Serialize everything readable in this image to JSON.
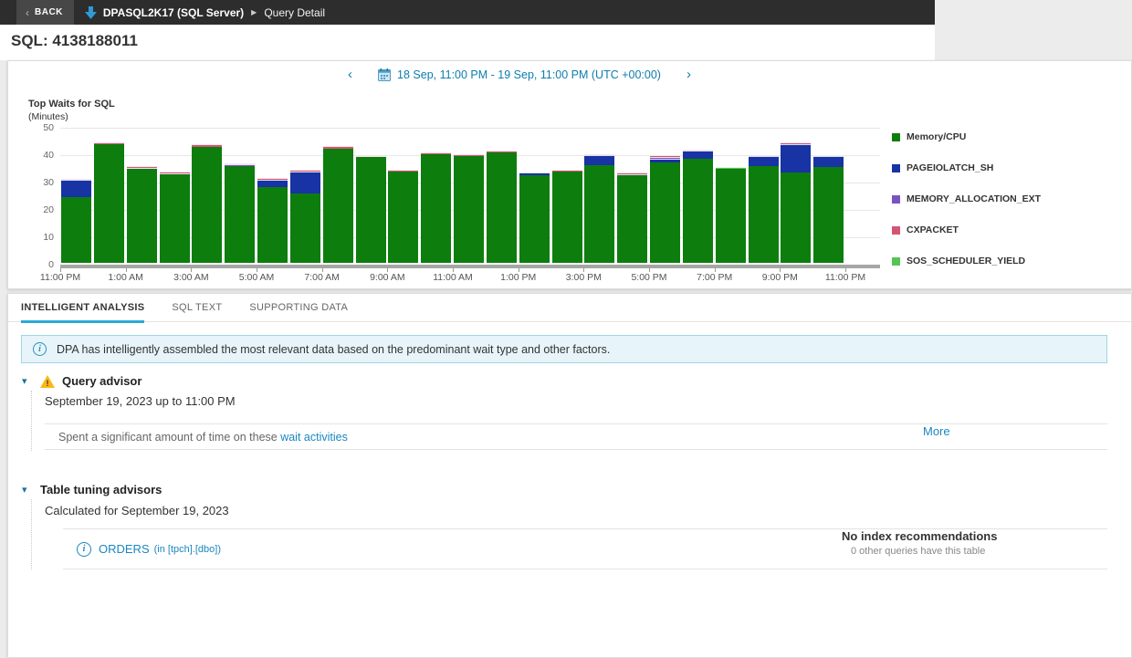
{
  "topbar": {
    "back_chevron": "‹",
    "back_label": "BACK",
    "server": "DPASQL2K17 (SQL Server)",
    "separator": "▶",
    "page": "Query Detail"
  },
  "header": {
    "title": "SQL: 4138188011"
  },
  "datenav": {
    "prev_icon": "‹",
    "next_icon": "›",
    "range": "18 Sep, 11:00 PM - 19 Sep, 11:00 PM (UTC +00:00)"
  },
  "chart_data": {
    "type": "bar",
    "stacked": true,
    "title": "Top Waits for SQL",
    "ylabel": "(Minutes)",
    "ylim": [
      0,
      50
    ],
    "yticks": [
      0,
      10,
      20,
      30,
      40,
      50
    ],
    "grid": true,
    "legend_position": "right",
    "xtick_labels": [
      "11:00 PM",
      "1:00 AM",
      "3:00 AM",
      "5:00 AM",
      "7:00 AM",
      "9:00 AM",
      "11:00 AM",
      "1:00 PM",
      "3:00 PM",
      "5:00 PM",
      "7:00 PM",
      "9:00 PM",
      "11:00 PM"
    ],
    "series": [
      {
        "name": "Memory/CPU",
        "color": "#0d7d0d",
        "values": [
          24,
          43.3,
          34.3,
          32.2,
          42.3,
          35.3,
          27.6,
          25.4,
          41.8,
          38.6,
          33.4,
          39.7,
          39.1,
          40.4,
          32.1,
          33.2,
          35.7,
          31.9,
          36.7,
          38.1,
          34.4,
          35.5,
          33.1,
          35.1
        ]
      },
      {
        "name": "PAGEIOLATCH_SH",
        "color": "#1733a4",
        "values": [
          6.2,
          0,
          0,
          0,
          0,
          0,
          2.7,
          7.9,
          0,
          0,
          0,
          0,
          0,
          0,
          0.9,
          0,
          3.6,
          0.5,
          1.4,
          2.9,
          0,
          3.5,
          10.4,
          3.9
        ]
      },
      {
        "name": "MEMORY_ALLOCATION_EXT",
        "color": "#7a52c2",
        "values": [
          0,
          0,
          0.4,
          0.3,
          0,
          0.6,
          0,
          0,
          0,
          0,
          0,
          0,
          0,
          0,
          0,
          0,
          0,
          0,
          0.4,
          0,
          0,
          0,
          0,
          0
        ]
      },
      {
        "name": "CXPACKET",
        "color": "#d45572",
        "values": [
          0.5,
          0.7,
          0.5,
          0.8,
          0.9,
          0.3,
          0.6,
          0.7,
          0.8,
          0.5,
          0.7,
          0.4,
          0.4,
          0.3,
          0,
          0.7,
          0.3,
          0.7,
          0.6,
          0.5,
          0,
          0.5,
          0.6,
          0
        ]
      },
      {
        "name": "SOS_SCHEDULER_YIELD",
        "color": "#55c455",
        "values": [
          0,
          0,
          0,
          0,
          0,
          0,
          0,
          0,
          0,
          0,
          0,
          0,
          0,
          0,
          0,
          0,
          0,
          0,
          0,
          0,
          0.6,
          0,
          0,
          0.5
        ]
      }
    ]
  },
  "tabs": [
    {
      "label": "INTELLIGENT ANALYSIS",
      "active": true
    },
    {
      "label": "SQL TEXT",
      "active": false
    },
    {
      "label": "SUPPORTING DATA",
      "active": false
    }
  ],
  "banner": {
    "icon": "i",
    "text": "DPA has intelligently assembled the most relevant data based on the predominant wait type and other factors."
  },
  "query_advisor": {
    "collapse_icon": "▾",
    "title": "Query advisor",
    "date_line": "September 19, 2023 up to 11:00 PM",
    "advice_prefix": "Spent a significant amount of time on these ",
    "advice_link": "wait activities",
    "more_link": "More"
  },
  "table_tuning": {
    "collapse_icon": "▾",
    "title": "Table tuning advisors",
    "date_line": "Calculated for September 19, 2023",
    "table_info_icon": "i",
    "table_name": "ORDERS",
    "table_schema": "(in [tpch].[dbo])",
    "result_title": "No index recommendations",
    "result_sub": "0 other queries have this table"
  },
  "colors": {
    "accent_teal": "#2aa9d4",
    "link_blue": "#1a87c0",
    "topbar_bg": "#2d2d2d",
    "banner_bg": "#e7f4fa"
  }
}
